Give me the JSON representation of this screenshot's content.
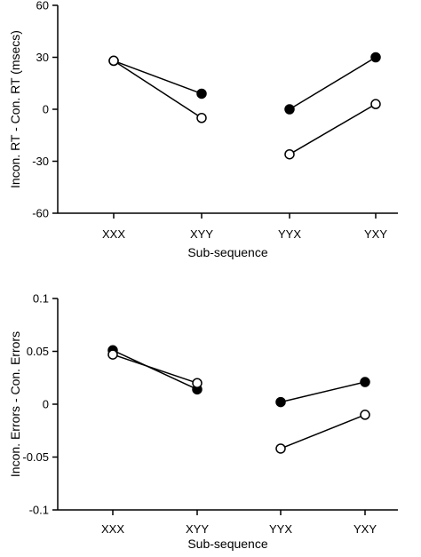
{
  "chart_data": [
    {
      "type": "line",
      "xlabel": "Sub-sequence",
      "ylabel": "Incon. RT - Con. RT (msecs)",
      "categories": [
        "XXX",
        "XYY",
        "YYX",
        "YXY"
      ],
      "ylim": [
        -60,
        60
      ],
      "yticks": [
        {
          "value": 60,
          "label": "60"
        },
        {
          "value": 30,
          "label": "30"
        },
        {
          "value": 0,
          "label": "0"
        },
        {
          "value": -30,
          "label": "-30"
        },
        {
          "value": -60,
          "label": "-60"
        }
      ],
      "series": [
        {
          "marker": "filled",
          "color": "#000000",
          "segments": [
            {
              "x": [
                "XXX",
                "XYY"
              ],
              "y": [
                28,
                9
              ]
            },
            {
              "x": [
                "YYX",
                "YXY"
              ],
              "y": [
                0,
                30
              ]
            }
          ]
        },
        {
          "marker": "open",
          "color": "#ffffff",
          "segments": [
            {
              "x": [
                "XXX",
                "XYY"
              ],
              "y": [
                28,
                -5
              ]
            },
            {
              "x": [
                "YYX",
                "YXY"
              ],
              "y": [
                -26,
                3
              ]
            }
          ]
        }
      ],
      "grid": false,
      "legend": "none"
    },
    {
      "type": "line",
      "xlabel": "Sub-sequence",
      "ylabel": "Incon. Errors - Con. Errors",
      "categories": [
        "XXX",
        "XYY",
        "YYX",
        "YXY"
      ],
      "ylim": [
        -0.1,
        0.1
      ],
      "yticks": [
        {
          "value": 0.1,
          "label": "0.1"
        },
        {
          "value": 0.05,
          "label": "0.05"
        },
        {
          "value": 0,
          "label": "0"
        },
        {
          "value": -0.05,
          "label": "-0.05"
        },
        {
          "value": -0.1,
          "label": "-0.1"
        }
      ],
      "series": [
        {
          "marker": "filled",
          "color": "#000000",
          "segments": [
            {
              "x": [
                "XXX",
                "XYY"
              ],
              "y": [
                0.051,
                0.014
              ]
            },
            {
              "x": [
                "YYX",
                "YXY"
              ],
              "y": [
                0.002,
                0.021
              ]
            }
          ]
        },
        {
          "marker": "open",
          "color": "#ffffff",
          "segments": [
            {
              "x": [
                "XXX",
                "XYY"
              ],
              "y": [
                0.047,
                0.02
              ]
            },
            {
              "x": [
                "YYX",
                "YXY"
              ],
              "y": [
                -0.042,
                -0.01
              ]
            }
          ]
        }
      ],
      "grid": false,
      "legend": "none"
    }
  ]
}
